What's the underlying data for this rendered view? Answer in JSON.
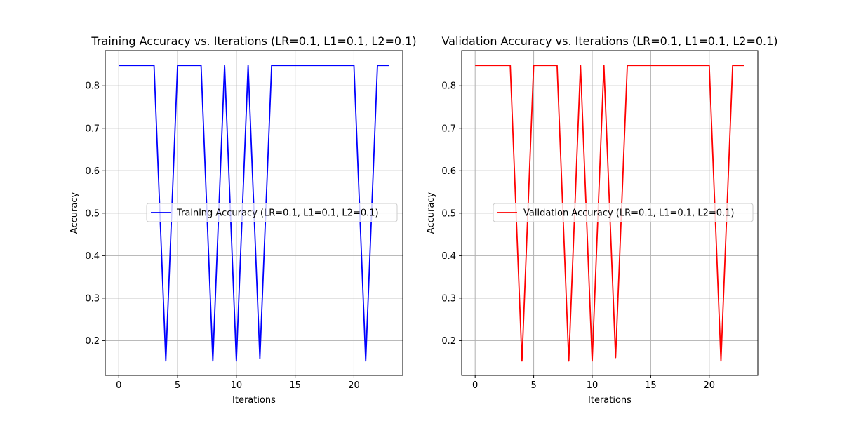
{
  "chart_data": [
    {
      "type": "line",
      "title": "Training Accuracy vs. Iterations (LR=0.1, L1=0.1, L2=0.1)",
      "xlabel": "Iterations",
      "ylabel": "Accuracy",
      "xlim": [
        -1.15,
        24.15
      ],
      "ylim": [
        0.118,
        0.883
      ],
      "xticks": [
        0,
        5,
        10,
        15,
        20
      ],
      "yticks": [
        0.2,
        0.3,
        0.4,
        0.5,
        0.6,
        0.7,
        0.8
      ],
      "grid": true,
      "legend_position": "center-right",
      "series": [
        {
          "name": "Training Accuracy (LR=0.1, L1=0.1, L2=0.1)",
          "color": "#0000ff",
          "x": [
            0,
            1,
            2,
            3,
            4,
            5,
            6,
            7,
            8,
            9,
            10,
            11,
            12,
            13,
            14,
            15,
            16,
            17,
            18,
            19,
            20,
            21,
            22,
            23
          ],
          "y": [
            0.848,
            0.848,
            0.848,
            0.848,
            0.152,
            0.848,
            0.848,
            0.848,
            0.152,
            0.848,
            0.152,
            0.848,
            0.158,
            0.848,
            0.848,
            0.848,
            0.848,
            0.848,
            0.848,
            0.848,
            0.848,
            0.152,
            0.848,
            0.848
          ]
        }
      ]
    },
    {
      "type": "line",
      "title": "Validation Accuracy vs. Iterations (LR=0.1, L1=0.1, L2=0.1)",
      "xlabel": "Iterations",
      "ylabel": "Accuracy",
      "xlim": [
        -1.15,
        24.15
      ],
      "ylim": [
        0.118,
        0.883
      ],
      "xticks": [
        0,
        5,
        10,
        15,
        20
      ],
      "yticks": [
        0.2,
        0.3,
        0.4,
        0.5,
        0.6,
        0.7,
        0.8
      ],
      "grid": true,
      "legend_position": "center-right",
      "series": [
        {
          "name": "Validation Accuracy (LR=0.1, L1=0.1, L2=0.1)",
          "color": "#ff0000",
          "x": [
            0,
            1,
            2,
            3,
            4,
            5,
            6,
            7,
            8,
            9,
            10,
            11,
            12,
            13,
            14,
            15,
            16,
            17,
            18,
            19,
            20,
            21,
            22,
            23
          ],
          "y": [
            0.848,
            0.848,
            0.848,
            0.848,
            0.152,
            0.848,
            0.848,
            0.848,
            0.152,
            0.848,
            0.152,
            0.848,
            0.16,
            0.848,
            0.848,
            0.848,
            0.848,
            0.848,
            0.848,
            0.848,
            0.848,
            0.152,
            0.848,
            0.848
          ]
        }
      ]
    }
  ]
}
